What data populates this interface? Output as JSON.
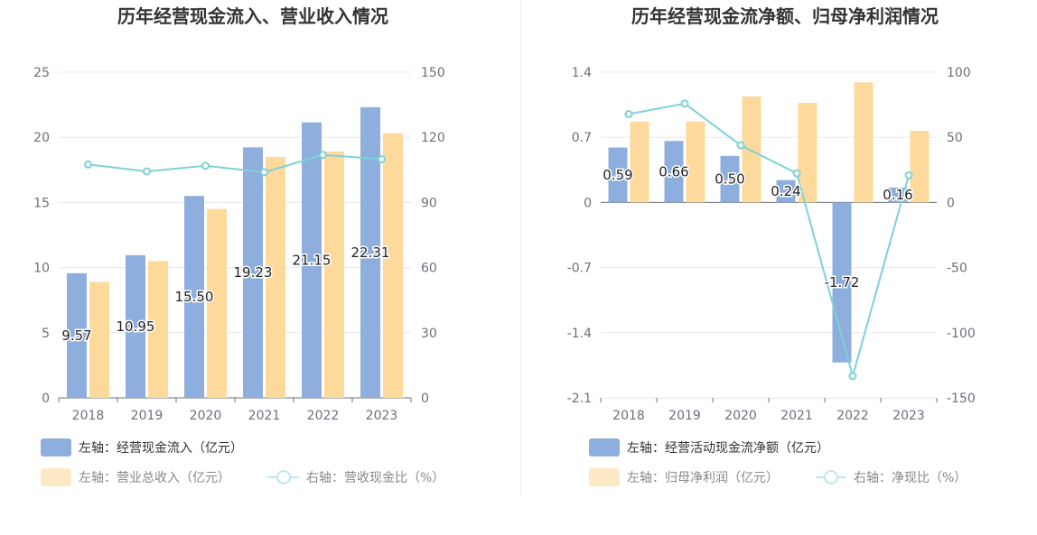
{
  "chart_data": [
    {
      "type": "bar",
      "title": "历年经营现金流入、营业收入情况",
      "categories": [
        "2018",
        "2019",
        "2020",
        "2021",
        "2022",
        "2023"
      ],
      "left_axis": {
        "ticks": [
          "0",
          "5",
          "10",
          "15",
          "20",
          "25"
        ],
        "ylim": [
          0,
          25
        ]
      },
      "right_axis": {
        "ticks": [
          "0",
          "30",
          "60",
          "90",
          "120",
          "150"
        ],
        "ylim": [
          0,
          150
        ]
      },
      "series": [
        {
          "name": "左轴：经营现金流入（亿元）",
          "type": "bar",
          "axis": "left",
          "color": "#8eaedd",
          "values": [
            9.57,
            10.95,
            15.5,
            19.23,
            21.15,
            22.31
          ],
          "labels": [
            "9.57",
            "10.95",
            "15.50",
            "19.23",
            "21.15",
            "22.31"
          ]
        },
        {
          "name": "左轴：营业总收入（亿元）",
          "type": "bar",
          "axis": "left",
          "color": "#fdd99b",
          "values": [
            8.9,
            10.5,
            14.5,
            18.5,
            18.9,
            20.3
          ]
        },
        {
          "name": "右轴：营收现金比（%）",
          "type": "line",
          "axis": "right",
          "color": "#7fd1d6",
          "values": [
            107.5,
            104.3,
            106.9,
            103.9,
            111.9,
            109.9
          ]
        }
      ]
    },
    {
      "type": "bar",
      "title": "历年经营现金流净额、归母净利润情况",
      "categories": [
        "2018",
        "2019",
        "2020",
        "2021",
        "2022",
        "2023"
      ],
      "left_axis": {
        "ticks": [
          "-2.1",
          "-1.4",
          "-0.7",
          "0",
          "0.7",
          "1.4"
        ],
        "ylim": [
          -2.1,
          1.4
        ]
      },
      "right_axis": {
        "ticks": [
          "-150",
          "-100",
          "-50",
          "0",
          "50",
          "100"
        ],
        "ylim": [
          -150,
          100
        ]
      },
      "series": [
        {
          "name": "左轴：经营活动现金流净额（亿元）",
          "type": "bar",
          "axis": "left",
          "color": "#8eaedd",
          "values": [
            0.59,
            0.66,
            0.5,
            0.24,
            -1.72,
            0.16
          ],
          "labels": [
            "0.59",
            "0.66",
            "0.50",
            "0.24",
            "-1.72",
            "0.16"
          ]
        },
        {
          "name": "左轴：归母净利润（亿元）",
          "type": "bar",
          "axis": "left",
          "color": "#fdd99b",
          "values": [
            0.87,
            0.87,
            1.14,
            1.07,
            1.29,
            0.77
          ]
        },
        {
          "name": "右轴：净现比（%）",
          "type": "line",
          "axis": "right",
          "color": "#7fd1d6",
          "values": [
            67.8,
            75.9,
            43.9,
            22.4,
            -133.3,
            20.8
          ]
        }
      ]
    }
  ]
}
